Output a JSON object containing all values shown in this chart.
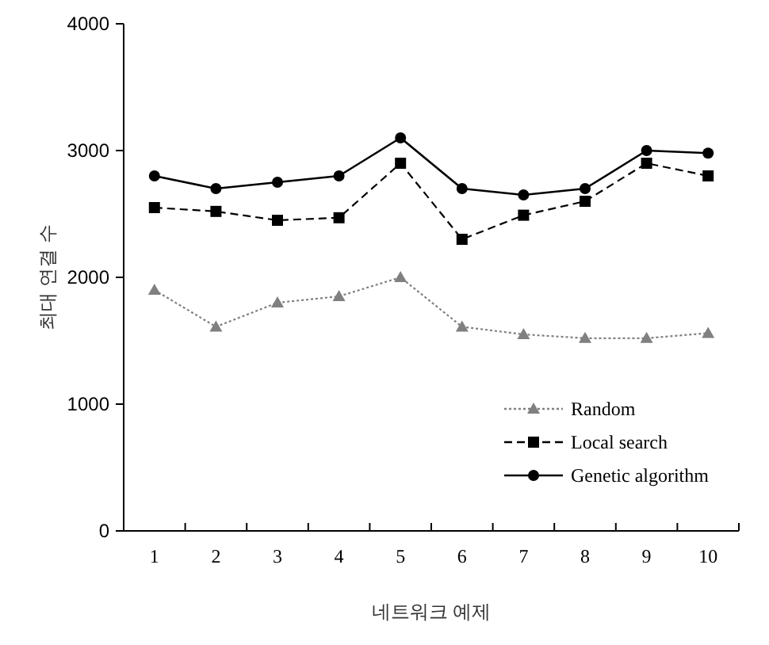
{
  "chart_data": {
    "type": "line",
    "xlabel": "네트워크 예제",
    "ylabel": "최대 연결 수",
    "categories": [
      "1",
      "2",
      "3",
      "4",
      "5",
      "6",
      "7",
      "8",
      "9",
      "10"
    ],
    "ylim": [
      0,
      4000
    ],
    "yticks": [
      0,
      1000,
      2000,
      3000,
      4000
    ],
    "legend": "bottom right",
    "grid": false,
    "series": [
      {
        "name": "Random",
        "color": "#808080",
        "line_style": "dotted",
        "marker": "triangle",
        "values": [
          1900,
          1610,
          1800,
          1850,
          2000,
          1610,
          1550,
          1520,
          1520,
          1560
        ]
      },
      {
        "name": "Local search",
        "color": "#000000",
        "line_style": "dashed",
        "marker": "square",
        "values": [
          2550,
          2520,
          2450,
          2470,
          2900,
          2300,
          2490,
          2600,
          2900,
          2800
        ]
      },
      {
        "name": "Genetic algorithm",
        "color": "#000000",
        "line_style": "solid",
        "marker": "circle",
        "values": [
          2800,
          2700,
          2750,
          2800,
          3100,
          2700,
          2650,
          2700,
          3000,
          2980
        ]
      }
    ]
  }
}
